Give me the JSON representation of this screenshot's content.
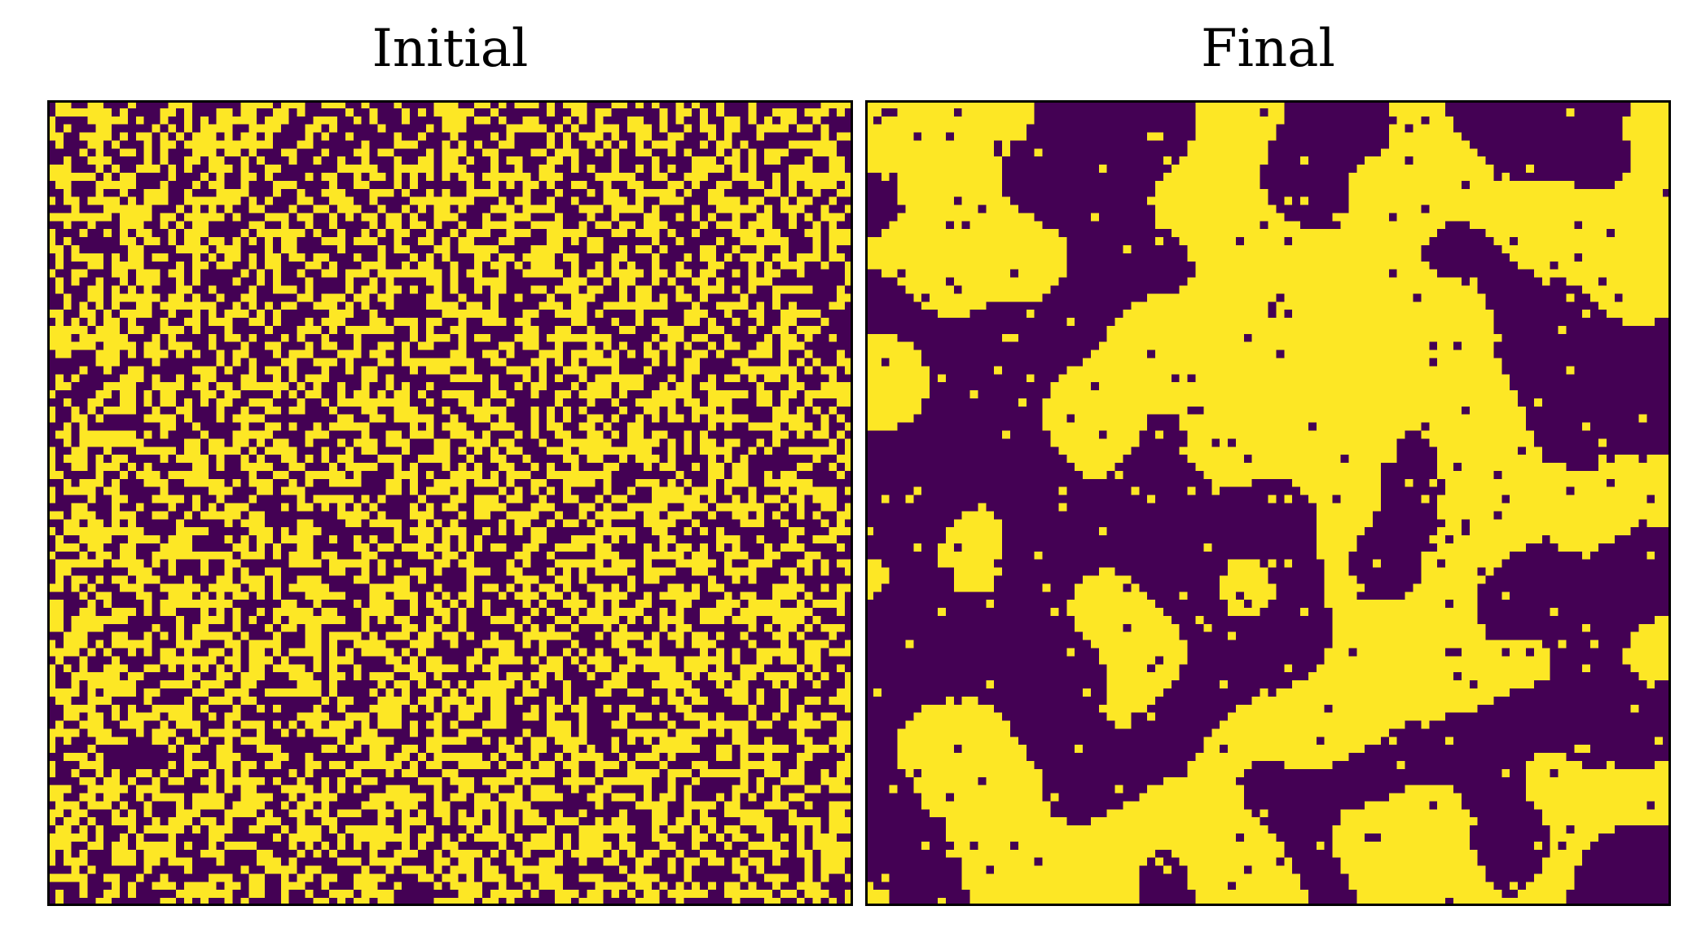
{
  "chart_data": [
    {
      "type": "heatmap",
      "title": "Initial",
      "grid": {
        "rows": 100,
        "cols": 100
      },
      "colors": {
        "low": "#440154",
        "high": "#fde725"
      },
      "pattern": "random",
      "fraction_high": 0.5,
      "axes": "off"
    },
    {
      "type": "heatmap",
      "title": "Final",
      "grid": {
        "rows": 100,
        "cols": 100
      },
      "colors": {
        "low": "#440154",
        "high": "#fde725"
      },
      "pattern": "coarsened-domains",
      "fraction_high": 0.5,
      "axes": "off"
    }
  ]
}
